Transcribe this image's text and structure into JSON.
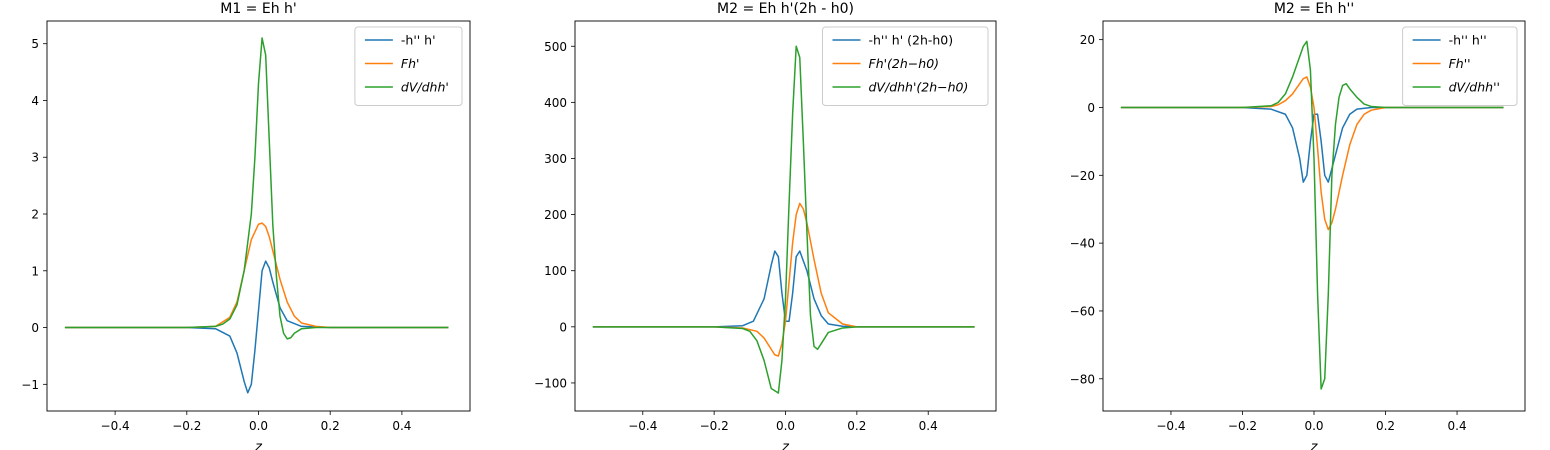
{
  "chart_data": [
    {
      "type": "line",
      "title": "M1 = Eh h'",
      "xlabel": "z",
      "ylabel": "",
      "xlim": [
        -0.59,
        0.59
      ],
      "ylim": [
        -1.47,
        5.4
      ],
      "xticks": [
        -0.4,
        -0.2,
        0.0,
        0.2,
        0.4
      ],
      "xtick_labels": [
        "−0.4",
        "−0.2",
        "0.0",
        "0.2",
        "0.4"
      ],
      "yticks": [
        -1,
        0,
        1,
        2,
        3,
        4,
        5
      ],
      "ytick_labels": [
        "−1",
        "0",
        "1",
        "2",
        "3",
        "4",
        "5"
      ],
      "legend": "top-right",
      "grid": false,
      "series": [
        {
          "name": "-h'' h'",
          "color": "#1f77b4",
          "x": [
            -0.54,
            -0.2,
            -0.12,
            -0.08,
            -0.06,
            -0.04,
            -0.03,
            -0.02,
            -0.01,
            0.0,
            0.01,
            0.02,
            0.03,
            0.04,
            0.06,
            0.08,
            0.12,
            0.2,
            0.53
          ],
          "y": [
            0,
            0,
            -0.02,
            -0.15,
            -0.45,
            -0.95,
            -1.15,
            -1.0,
            -0.4,
            0.3,
            1.0,
            1.17,
            1.05,
            0.8,
            0.35,
            0.12,
            0.02,
            0,
            0
          ]
        },
        {
          "name": "Fh'",
          "color": "#ff7f0e",
          "x": [
            -0.54,
            -0.2,
            -0.12,
            -0.08,
            -0.06,
            -0.04,
            -0.02,
            0.0,
            0.01,
            0.02,
            0.03,
            0.04,
            0.06,
            0.08,
            0.1,
            0.12,
            0.16,
            0.2,
            0.53
          ],
          "y": [
            0,
            0,
            0.02,
            0.18,
            0.45,
            1.0,
            1.55,
            1.82,
            1.84,
            1.78,
            1.6,
            1.35,
            0.85,
            0.45,
            0.2,
            0.08,
            0.02,
            0,
            0
          ]
        },
        {
          "name": "dV/dhh'",
          "color": "#2ca02c",
          "x": [
            -0.54,
            -0.2,
            -0.12,
            -0.1,
            -0.08,
            -0.06,
            -0.04,
            -0.02,
            -0.01,
            0.0,
            0.01,
            0.02,
            0.03,
            0.04,
            0.05,
            0.06,
            0.07,
            0.08,
            0.09,
            0.1,
            0.12,
            0.16,
            0.2,
            0.53
          ],
          "y": [
            0,
            0,
            0.02,
            0.06,
            0.15,
            0.4,
            1.0,
            2.0,
            3.0,
            4.3,
            5.1,
            4.8,
            3.3,
            1.8,
            0.9,
            0.2,
            -0.1,
            -0.2,
            -0.18,
            -0.1,
            -0.02,
            0,
            0,
            0
          ]
        }
      ]
    },
    {
      "type": "line",
      "title": "M2 = Eh h'(2h - h0)",
      "xlabel": "z",
      "ylabel": "",
      "xlim": [
        -0.59,
        0.59
      ],
      "ylim": [
        -150,
        545
      ],
      "xticks": [
        -0.4,
        -0.2,
        0.0,
        0.2,
        0.4
      ],
      "xtick_labels": [
        "−0.4",
        "−0.2",
        "0.0",
        "0.2",
        "0.4"
      ],
      "yticks": [
        -100,
        0,
        100,
        200,
        300,
        400,
        500
      ],
      "ytick_labels": [
        "−100",
        "0",
        "100",
        "200",
        "300",
        "400",
        "500"
      ],
      "legend": "top-right",
      "grid": false,
      "series": [
        {
          "name": "-h'' h' (2h-h0)",
          "color": "#1f77b4",
          "x": [
            -0.54,
            -0.2,
            -0.12,
            -0.09,
            -0.06,
            -0.04,
            -0.03,
            -0.02,
            -0.01,
            0.0,
            0.01,
            0.02,
            0.03,
            0.04,
            0.06,
            0.08,
            0.1,
            0.12,
            0.16,
            0.2,
            0.53
          ],
          "y": [
            0,
            0,
            2,
            10,
            50,
            110,
            135,
            125,
            60,
            10,
            10,
            60,
            125,
            135,
            100,
            50,
            20,
            5,
            1,
            0,
            0
          ]
        },
        {
          "name": "Fh'(2h−h0)",
          "color": "#ff7f0e",
          "x": [
            -0.54,
            -0.2,
            -0.12,
            -0.08,
            -0.06,
            -0.04,
            -0.03,
            -0.02,
            -0.01,
            0.0,
            0.01,
            0.02,
            0.03,
            0.04,
            0.05,
            0.06,
            0.08,
            0.1,
            0.12,
            0.16,
            0.2,
            0.53
          ],
          "y": [
            0,
            0,
            -2,
            -8,
            -20,
            -40,
            -50,
            -52,
            -30,
            10,
            80,
            150,
            200,
            220,
            210,
            185,
            120,
            60,
            25,
            5,
            0,
            0
          ]
        },
        {
          "name": "dV/dhh'(2h−h0)",
          "color": "#2ca02c",
          "x": [
            -0.54,
            -0.2,
            -0.12,
            -0.1,
            -0.08,
            -0.06,
            -0.04,
            -0.02,
            -0.01,
            0.0,
            0.01,
            0.02,
            0.03,
            0.04,
            0.05,
            0.06,
            0.07,
            0.08,
            0.09,
            0.1,
            0.12,
            0.16,
            0.2,
            0.53
          ],
          "y": [
            0,
            0,
            -3,
            -8,
            -25,
            -60,
            -110,
            -118,
            -60,
            50,
            220,
            380,
            500,
            480,
            330,
            170,
            20,
            -35,
            -40,
            -30,
            -10,
            -2,
            0,
            0
          ]
        }
      ]
    },
    {
      "type": "line",
      "title": "M2 = Eh h''",
      "xlabel": "z",
      "ylabel": "",
      "xlim": [
        -0.59,
        0.59
      ],
      "ylim": [
        -89.5,
        25.5
      ],
      "xticks": [
        -0.4,
        -0.2,
        0.0,
        0.2,
        0.4
      ],
      "xtick_labels": [
        "−0.4",
        "−0.2",
        "0.0",
        "0.2",
        "0.4"
      ],
      "yticks": [
        -80,
        -60,
        -40,
        -20,
        0,
        20
      ],
      "ytick_labels": [
        "−80",
        "−60",
        "−40",
        "−20",
        "0",
        "20"
      ],
      "legend": "top-right",
      "grid": false,
      "series": [
        {
          "name": "-h'' h''",
          "color": "#1f77b4",
          "x": [
            -0.54,
            -0.2,
            -0.12,
            -0.08,
            -0.06,
            -0.04,
            -0.03,
            -0.02,
            -0.01,
            0.0,
            0.01,
            0.02,
            0.03,
            0.04,
            0.06,
            0.08,
            0.1,
            0.12,
            0.16,
            0.2,
            0.53
          ],
          "y": [
            0,
            0,
            -0.5,
            -2,
            -6,
            -15,
            -22,
            -20,
            -10,
            -2,
            -2,
            -10,
            -20,
            -22,
            -14,
            -6,
            -2,
            -0.5,
            0,
            0,
            0
          ]
        },
        {
          "name": "Fh''",
          "color": "#ff7f0e",
          "x": [
            -0.54,
            -0.2,
            -0.12,
            -0.1,
            -0.08,
            -0.06,
            -0.04,
            -0.03,
            -0.02,
            -0.01,
            0.0,
            0.01,
            0.02,
            0.03,
            0.04,
            0.05,
            0.06,
            0.08,
            0.1,
            0.12,
            0.14,
            0.16,
            0.2,
            0.53
          ],
          "y": [
            0,
            0,
            0.3,
            0.8,
            2,
            4,
            7,
            8.5,
            9,
            6,
            0,
            -12,
            -25,
            -33,
            -36,
            -34,
            -30,
            -20,
            -11,
            -5,
            -2,
            -0.8,
            0,
            0
          ]
        },
        {
          "name": "dV/dhh''",
          "color": "#2ca02c",
          "x": [
            -0.54,
            -0.2,
            -0.12,
            -0.1,
            -0.08,
            -0.06,
            -0.04,
            -0.03,
            -0.02,
            -0.01,
            0.0,
            0.01,
            0.02,
            0.03,
            0.04,
            0.05,
            0.06,
            0.07,
            0.08,
            0.09,
            0.1,
            0.12,
            0.14,
            0.16,
            0.2,
            0.53
          ],
          "y": [
            0,
            0,
            0.5,
            1.5,
            4,
            9,
            15,
            18,
            19.5,
            11,
            -15,
            -55,
            -83,
            -80,
            -55,
            -20,
            -5,
            3,
            6.5,
            7,
            5.5,
            3,
            1,
            0.3,
            0,
            0
          ]
        }
      ]
    }
  ]
}
